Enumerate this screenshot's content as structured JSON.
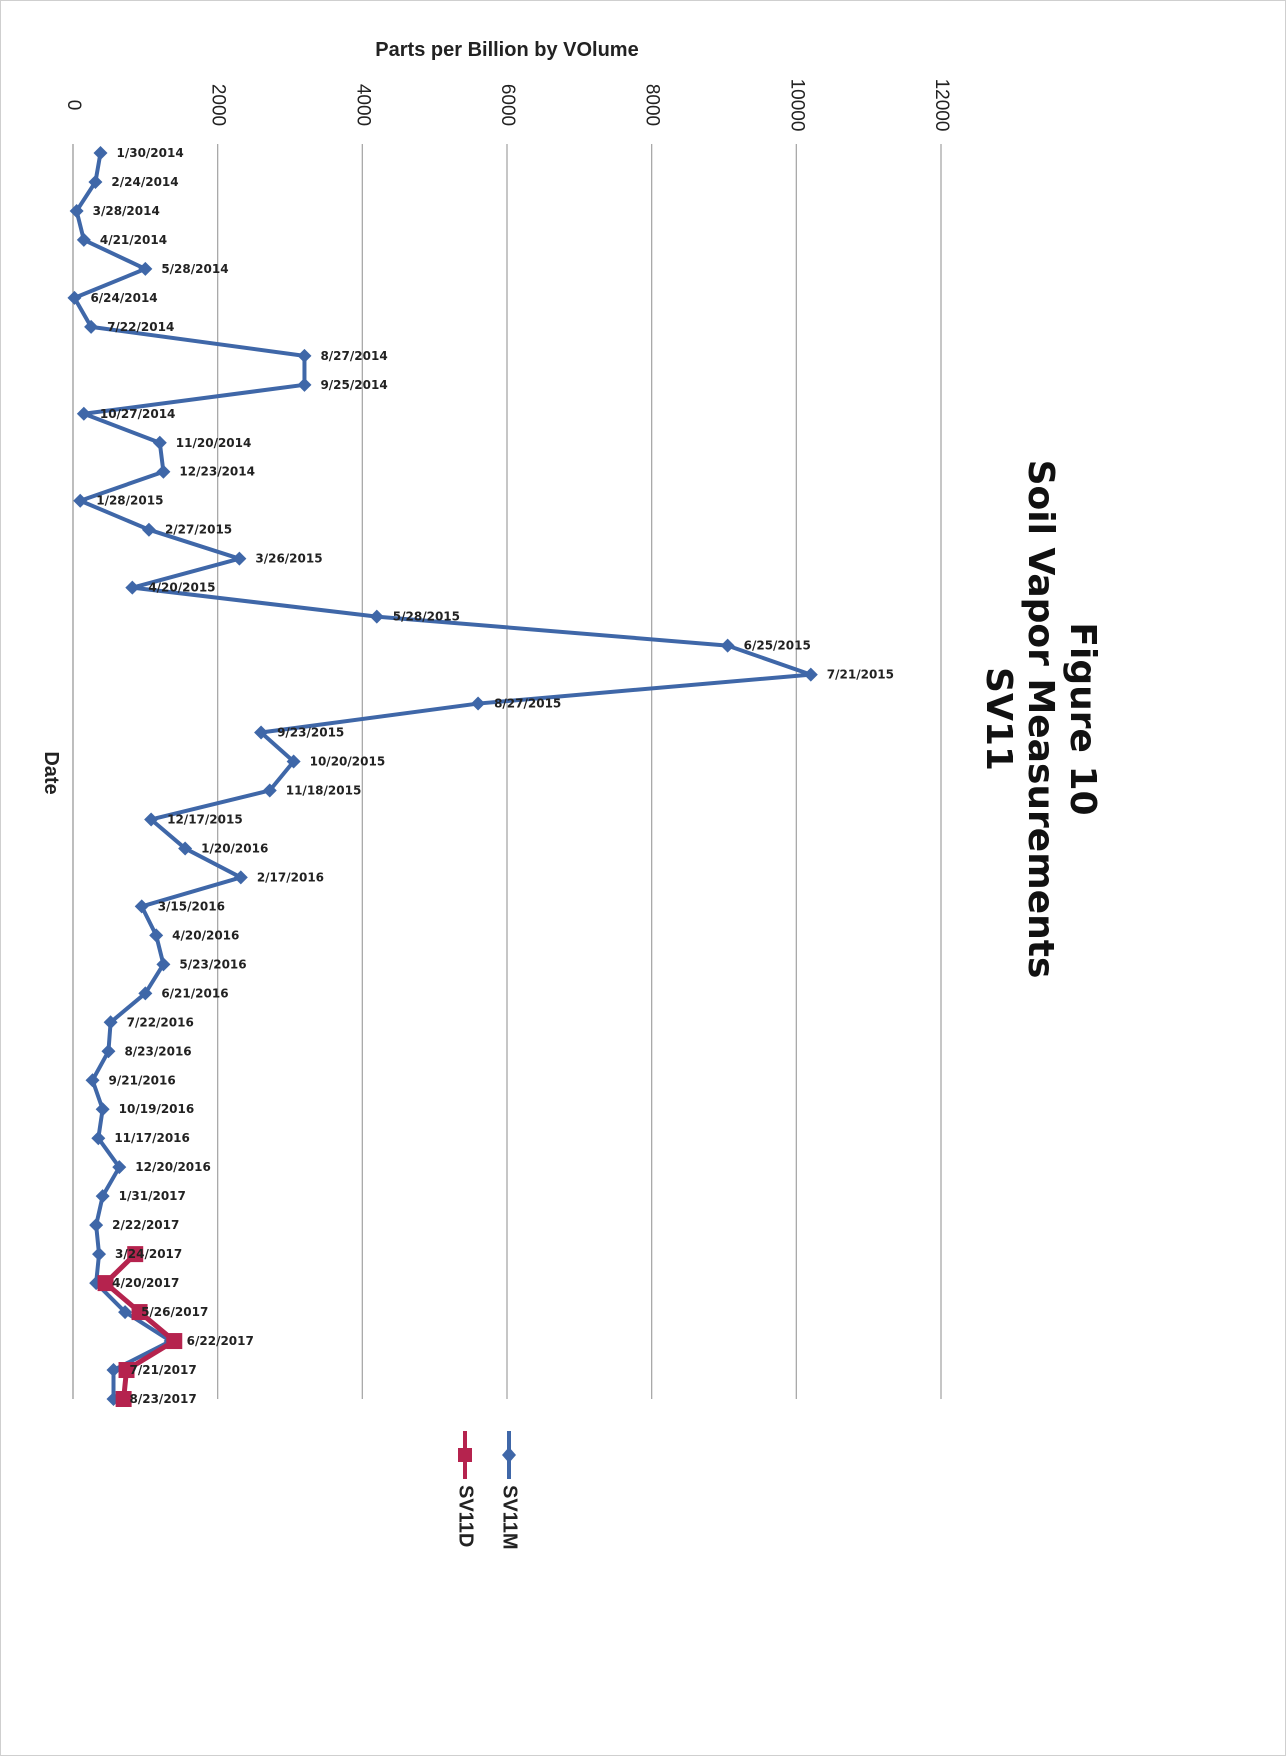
{
  "chart_data": {
    "type": "line",
    "title": [
      "Figure 10",
      "Soil Vapor Measurements",
      "SV11"
    ],
    "xlabel": "Date",
    "ylabel": "Parts per Billion by VOlume",
    "ylim": [
      0,
      12000
    ],
    "yticks": [
      "0",
      "2000",
      "4000",
      "6000",
      "8000",
      "10000",
      "12000"
    ],
    "grid": true,
    "legend_position": "bottom",
    "orientation": "rotated 90 degrees clockwise",
    "categories": [
      "1/30/2014",
      "2/24/2014",
      "3/28/2014",
      "4/21/2014",
      "5/28/2014",
      "6/24/2014",
      "7/22/2014",
      "8/27/2014",
      "9/25/2014",
      "10/27/2014",
      "11/20/2014",
      "12/23/2014",
      "1/28/2015",
      "2/27/2015",
      "3/26/2015",
      "4/20/2015",
      "5/28/2015",
      "6/25/2015",
      "7/21/2015",
      "8/27/2015",
      "9/23/2015",
      "10/20/2015",
      "11/18/2015",
      "12/17/2015",
      "1/20/2016",
      "2/17/2016",
      "3/15/2016",
      "4/20/2016",
      "5/23/2016",
      "6/21/2016",
      "7/22/2016",
      "8/23/2016",
      "9/21/2016",
      "10/19/2016",
      "11/17/2016",
      "12/20/2016",
      "1/31/2017",
      "2/22/2017",
      "3/24/2017",
      "4/20/2017",
      "5/26/2017",
      "6/22/2017",
      "7/21/2017",
      "8/23/2017"
    ],
    "series": [
      {
        "name": "SV11M",
        "color": "#3f67a8",
        "marker": "diamond",
        "values": [
          380,
          310,
          50,
          150,
          1000,
          20,
          250,
          3200,
          3200,
          150,
          1200,
          1250,
          100,
          1050,
          2300,
          820,
          4200,
          9050,
          10200,
          5600,
          2600,
          3050,
          2720,
          1080,
          1550,
          2320,
          950,
          1150,
          1250,
          1000,
          520,
          490,
          270,
          410,
          350,
          640,
          410,
          320,
          360,
          320,
          720,
          1350,
          560,
          560
        ]
      },
      {
        "name": "SV11D",
        "color": "#b5234e",
        "marker": "square",
        "values": [
          null,
          null,
          null,
          null,
          null,
          null,
          null,
          null,
          null,
          null,
          null,
          null,
          null,
          null,
          null,
          null,
          null,
          null,
          null,
          null,
          null,
          null,
          null,
          null,
          null,
          null,
          null,
          null,
          null,
          null,
          null,
          null,
          null,
          null,
          null,
          null,
          null,
          null,
          860,
          450,
          920,
          1400,
          740,
          700
        ]
      }
    ]
  }
}
